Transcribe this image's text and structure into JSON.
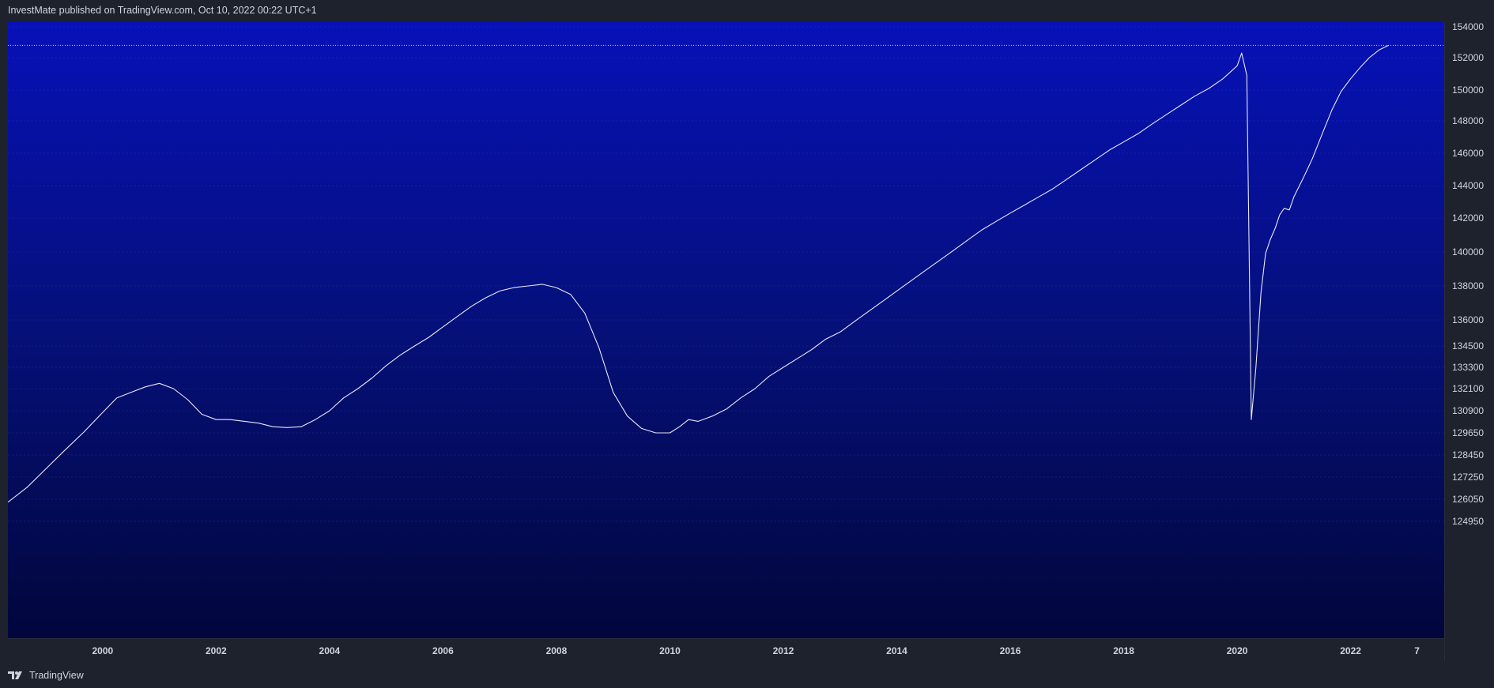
{
  "header": {
    "publisher_text": "InvestMate published on TradingView.com, Oct 10, 2022 00:22 UTC+1"
  },
  "footer": {
    "brand": "TradingView",
    "logo_icon": "tradingview-logo-icon"
  },
  "colors": {
    "background": "#1e222d",
    "plot_top": "#0711b8",
    "plot_bottom": "#02063c",
    "line": "#e6e8f5",
    "grid": "#3a4db3",
    "axis_text": "#d1d4dc"
  },
  "chart_data": {
    "type": "line",
    "title": "",
    "xlabel": "",
    "ylabel": "",
    "grid": true,
    "last_value_line": 152800,
    "x_tick_labels": [
      "2000",
      "2002",
      "2004",
      "2006",
      "2008",
      "2010",
      "2012",
      "2014",
      "2016",
      "2018",
      "2020",
      "2022",
      "7"
    ],
    "y_tick_labels": [
      "154000",
      "152000",
      "150000",
      "148000",
      "146000",
      "144000",
      "142000",
      "140000",
      "138000",
      "136000",
      "134500",
      "133300",
      "132100",
      "130900",
      "129650",
      "128450",
      "127250",
      "126050",
      "124950"
    ],
    "series": [
      {
        "x": [
          1998.33,
          1998.67,
          1999.0,
          1999.33,
          1999.67,
          2000.0,
          2000.25,
          2000.5,
          2000.75,
          2001.0,
          2001.25,
          2001.5,
          2001.75,
          2002.0,
          2002.25,
          2002.5,
          2002.75,
          2003.0,
          2003.25,
          2003.5,
          2003.75,
          2004.0,
          2004.25,
          2004.5,
          2004.75,
          2005.0,
          2005.25,
          2005.5,
          2005.75,
          2006.0,
          2006.25,
          2006.5,
          2006.75,
          2007.0,
          2007.25,
          2007.5,
          2007.75,
          2008.0,
          2008.25,
          2008.5,
          2008.75,
          2009.0,
          2009.25,
          2009.5,
          2009.75,
          2010.0,
          2010.17,
          2010.33,
          2010.5,
          2010.75,
          2011.0,
          2011.25,
          2011.5,
          2011.75,
          2012.0,
          2012.25,
          2012.5,
          2012.75,
          2013.0,
          2013.25,
          2013.5,
          2013.75,
          2014.0,
          2014.25,
          2014.5,
          2014.75,
          2015.0,
          2015.25,
          2015.5,
          2015.75,
          2016.0,
          2016.25,
          2016.5,
          2016.75,
          2017.0,
          2017.25,
          2017.5,
          2017.75,
          2018.0,
          2018.25,
          2018.5,
          2018.75,
          2019.0,
          2019.25,
          2019.5,
          2019.75,
          2020.0,
          2020.08,
          2020.17,
          2020.25,
          2020.33,
          2020.42,
          2020.5,
          2020.58,
          2020.67,
          2020.75,
          2020.83,
          2020.92,
          2021.0,
          2021.17,
          2021.33,
          2021.5,
          2021.67,
          2021.83,
          2022.0,
          2022.17,
          2022.33,
          2022.5,
          2022.67
        ],
        "y": [
          125900,
          126700,
          127700,
          128700,
          129700,
          130800,
          131600,
          131900,
          132200,
          132400,
          132100,
          131500,
          130700,
          130400,
          130400,
          130300,
          130200,
          130000,
          129950,
          130000,
          130400,
          130900,
          131600,
          132100,
          132700,
          133400,
          134000,
          134500,
          135000,
          135600,
          136200,
          136800,
          137300,
          137700,
          137900,
          138000,
          138100,
          137900,
          137500,
          136400,
          134400,
          131900,
          130600,
          129900,
          129650,
          129650,
          130000,
          130400,
          130300,
          130600,
          131000,
          131600,
          132100,
          132800,
          133300,
          133800,
          134300,
          134900,
          135300,
          135900,
          136500,
          137100,
          137700,
          138300,
          138900,
          139500,
          140100,
          140700,
          141300,
          141800,
          142300,
          142800,
          143300,
          143800,
          144400,
          145000,
          145600,
          146200,
          146700,
          147200,
          147800,
          148400,
          149000,
          149600,
          150100,
          150700,
          151500,
          152300,
          150900,
          130400,
          133300,
          137600,
          139900,
          140700,
          141400,
          142200,
          142600,
          142500,
          143300,
          144500,
          145700,
          147200,
          148700,
          149900,
          150700,
          151400,
          152000,
          152500,
          152800
        ]
      }
    ]
  }
}
